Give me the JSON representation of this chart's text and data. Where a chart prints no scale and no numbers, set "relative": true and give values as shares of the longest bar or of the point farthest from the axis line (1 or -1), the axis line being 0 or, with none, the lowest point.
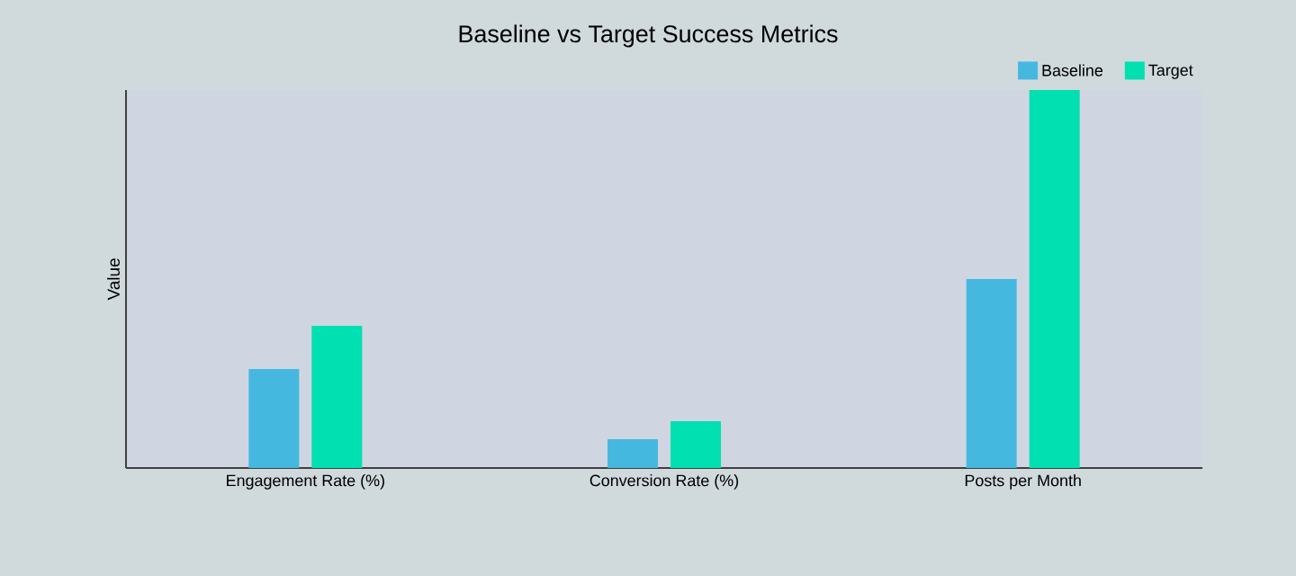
{
  "chart_data": {
    "type": "bar",
    "title": "Baseline vs Target Success Metrics",
    "ylabel": "Value",
    "relative": true,
    "legend": "top right",
    "categories": [
      "Engagement Rate (%)",
      "Conversion Rate (%)",
      "Posts per Month"
    ],
    "series": [
      {
        "name": "Baseline",
        "color": "#45b8e0",
        "values": [
          0.262,
          0.076,
          0.5
        ]
      },
      {
        "name": "Target",
        "color": "#00e0b0",
        "values": [
          0.376,
          0.124,
          1
        ]
      }
    ]
  }
}
